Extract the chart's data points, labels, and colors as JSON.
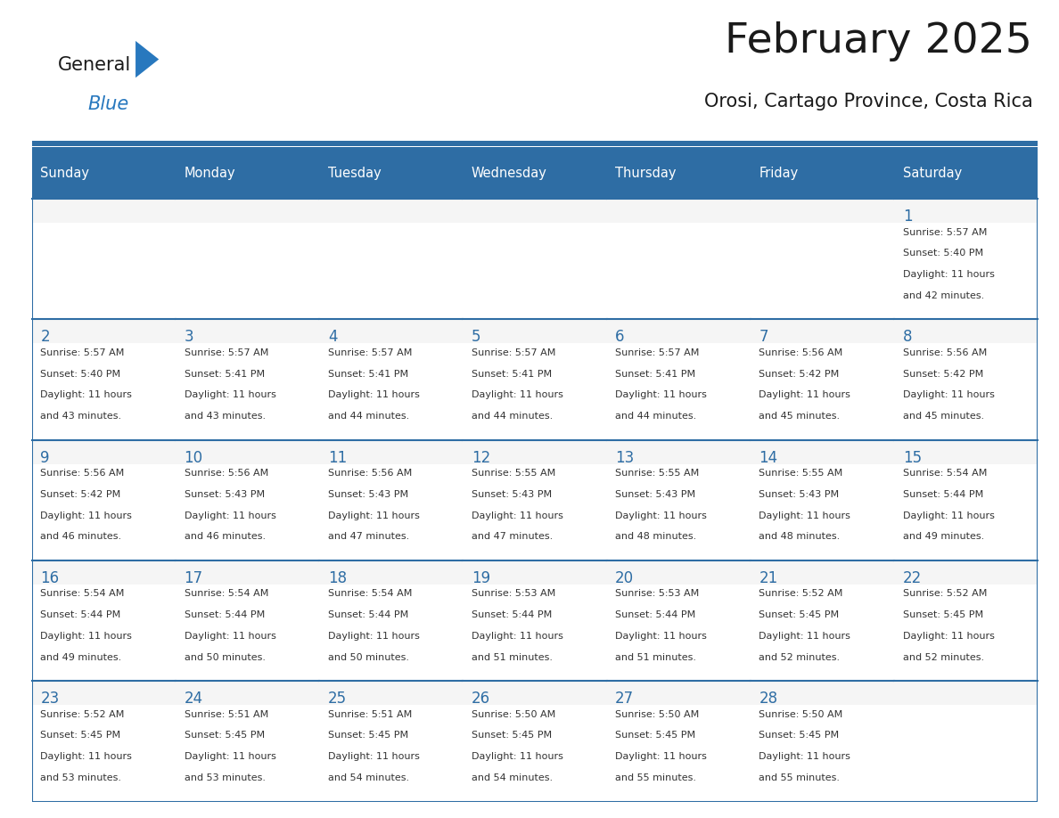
{
  "title": "February 2025",
  "subtitle": "Orosi, Cartago Province, Costa Rica",
  "days_of_week": [
    "Sunday",
    "Monday",
    "Tuesday",
    "Wednesday",
    "Thursday",
    "Friday",
    "Saturday"
  ],
  "header_bg_color": "#2E6DA4",
  "header_text_color": "#FFFFFF",
  "cell_bg_color": "#F5F5F5",
  "cell_text_area_color": "#FFFFFF",
  "day_num_color": "#2E6DA4",
  "text_color": "#333333",
  "border_color": "#2E6DA4",
  "title_color": "#1a1a1a",
  "subtitle_color": "#1a1a1a",
  "logo_general_color": "#1a1a1a",
  "logo_blue_color": "#2878BE",
  "calendar_data": [
    [
      null,
      null,
      null,
      null,
      null,
      null,
      1
    ],
    [
      2,
      3,
      4,
      5,
      6,
      7,
      8
    ],
    [
      9,
      10,
      11,
      12,
      13,
      14,
      15
    ],
    [
      16,
      17,
      18,
      19,
      20,
      21,
      22
    ],
    [
      23,
      24,
      25,
      26,
      27,
      28,
      null
    ]
  ],
  "sunrise_data": {
    "1": [
      "Sunrise: 5:57 AM",
      "Sunset: 5:40 PM",
      "Daylight: 11 hours",
      "and 42 minutes."
    ],
    "2": [
      "Sunrise: 5:57 AM",
      "Sunset: 5:40 PM",
      "Daylight: 11 hours",
      "and 43 minutes."
    ],
    "3": [
      "Sunrise: 5:57 AM",
      "Sunset: 5:41 PM",
      "Daylight: 11 hours",
      "and 43 minutes."
    ],
    "4": [
      "Sunrise: 5:57 AM",
      "Sunset: 5:41 PM",
      "Daylight: 11 hours",
      "and 44 minutes."
    ],
    "5": [
      "Sunrise: 5:57 AM",
      "Sunset: 5:41 PM",
      "Daylight: 11 hours",
      "and 44 minutes."
    ],
    "6": [
      "Sunrise: 5:57 AM",
      "Sunset: 5:41 PM",
      "Daylight: 11 hours",
      "and 44 minutes."
    ],
    "7": [
      "Sunrise: 5:56 AM",
      "Sunset: 5:42 PM",
      "Daylight: 11 hours",
      "and 45 minutes."
    ],
    "8": [
      "Sunrise: 5:56 AM",
      "Sunset: 5:42 PM",
      "Daylight: 11 hours",
      "and 45 minutes."
    ],
    "9": [
      "Sunrise: 5:56 AM",
      "Sunset: 5:42 PM",
      "Daylight: 11 hours",
      "and 46 minutes."
    ],
    "10": [
      "Sunrise: 5:56 AM",
      "Sunset: 5:43 PM",
      "Daylight: 11 hours",
      "and 46 minutes."
    ],
    "11": [
      "Sunrise: 5:56 AM",
      "Sunset: 5:43 PM",
      "Daylight: 11 hours",
      "and 47 minutes."
    ],
    "12": [
      "Sunrise: 5:55 AM",
      "Sunset: 5:43 PM",
      "Daylight: 11 hours",
      "and 47 minutes."
    ],
    "13": [
      "Sunrise: 5:55 AM",
      "Sunset: 5:43 PM",
      "Daylight: 11 hours",
      "and 48 minutes."
    ],
    "14": [
      "Sunrise: 5:55 AM",
      "Sunset: 5:43 PM",
      "Daylight: 11 hours",
      "and 48 minutes."
    ],
    "15": [
      "Sunrise: 5:54 AM",
      "Sunset: 5:44 PM",
      "Daylight: 11 hours",
      "and 49 minutes."
    ],
    "16": [
      "Sunrise: 5:54 AM",
      "Sunset: 5:44 PM",
      "Daylight: 11 hours",
      "and 49 minutes."
    ],
    "17": [
      "Sunrise: 5:54 AM",
      "Sunset: 5:44 PM",
      "Daylight: 11 hours",
      "and 50 minutes."
    ],
    "18": [
      "Sunrise: 5:54 AM",
      "Sunset: 5:44 PM",
      "Daylight: 11 hours",
      "and 50 minutes."
    ],
    "19": [
      "Sunrise: 5:53 AM",
      "Sunset: 5:44 PM",
      "Daylight: 11 hours",
      "and 51 minutes."
    ],
    "20": [
      "Sunrise: 5:53 AM",
      "Sunset: 5:44 PM",
      "Daylight: 11 hours",
      "and 51 minutes."
    ],
    "21": [
      "Sunrise: 5:52 AM",
      "Sunset: 5:45 PM",
      "Daylight: 11 hours",
      "and 52 minutes."
    ],
    "22": [
      "Sunrise: 5:52 AM",
      "Sunset: 5:45 PM",
      "Daylight: 11 hours",
      "and 52 minutes."
    ],
    "23": [
      "Sunrise: 5:52 AM",
      "Sunset: 5:45 PM",
      "Daylight: 11 hours",
      "and 53 minutes."
    ],
    "24": [
      "Sunrise: 5:51 AM",
      "Sunset: 5:45 PM",
      "Daylight: 11 hours",
      "and 53 minutes."
    ],
    "25": [
      "Sunrise: 5:51 AM",
      "Sunset: 5:45 PM",
      "Daylight: 11 hours",
      "and 54 minutes."
    ],
    "26": [
      "Sunrise: 5:50 AM",
      "Sunset: 5:45 PM",
      "Daylight: 11 hours",
      "and 54 minutes."
    ],
    "27": [
      "Sunrise: 5:50 AM",
      "Sunset: 5:45 PM",
      "Daylight: 11 hours",
      "and 55 minutes."
    ],
    "28": [
      "Sunrise: 5:50 AM",
      "Sunset: 5:45 PM",
      "Daylight: 11 hours",
      "and 55 minutes."
    ]
  }
}
